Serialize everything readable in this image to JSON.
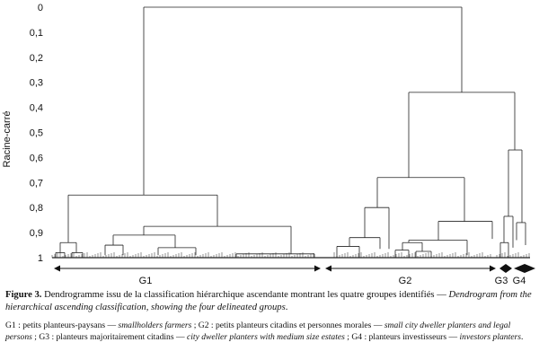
{
  "figure": {
    "ylabel": "Racine-carré",
    "yticks": [
      "0",
      "0,1",
      "0,2",
      "0,3",
      "0,4",
      "0,5",
      "0,6",
      "0,7",
      "0,8",
      "0,9",
      "1"
    ],
    "groups": [
      "G1",
      "G2",
      "G3",
      "G4"
    ]
  },
  "chart_data": {
    "type": "dendrogram",
    "ylabel": "Racine-carré",
    "y_axis_direction": "top-to-bottom",
    "ylim": [
      0,
      1
    ],
    "yticks": [
      0,
      0.1,
      0.2,
      0.3,
      0.4,
      0.5,
      0.6,
      0.7,
      0.8,
      0.9,
      1
    ],
    "merges": [
      {
        "joins": [
          "G1",
          "G2+G3+G4"
        ],
        "height": 0.0
      },
      {
        "joins": [
          "G2",
          "G3+G4"
        ],
        "height": 0.34
      },
      {
        "joins": [
          "G3",
          "G4"
        ],
        "height": 0.57
      },
      {
        "joins": [
          "G1 left",
          "G1 right"
        ],
        "height": 0.75
      },
      {
        "joins": [
          "G2 left",
          "G2 right"
        ],
        "height": 0.68
      }
    ],
    "groups": [
      {
        "name": "G1"
      },
      {
        "name": "G2"
      },
      {
        "name": "G3"
      },
      {
        "name": "G4"
      }
    ]
  },
  "caption": {
    "lead": "Figure 3.",
    "text_fr": " Dendrogramme issu de la classification hiérarchique ascendante montrant les quatre groupes identifiés — ",
    "text_en": "Dendrogram from the hierarchical ascending classification, showing the four delineated groups",
    "end": "."
  },
  "legend": {
    "g1_fr": "G1 : petits planteurs-paysans — ",
    "g1_en": "smallholders farmers",
    "g2_fr": " ; G2 : petits planteurs citadins et personnes morales — ",
    "g2_en": "small city dweller planters and legal persons",
    "g3_fr": " ; G3 : planteurs majoritairement citadins — ",
    "g3_en": "city dweller planters with medium size estates",
    "g4_fr": " ; G4 : planteurs investisseurs — ",
    "g4_en": "investors planters",
    "end": "."
  }
}
